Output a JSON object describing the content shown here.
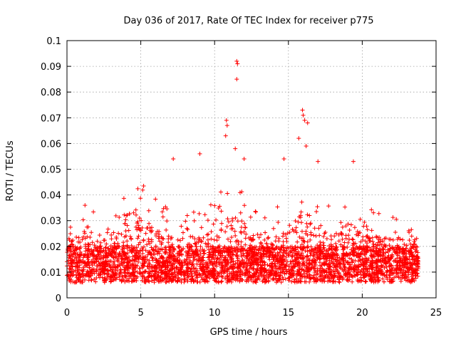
{
  "chart_data": {
    "type": "scatter",
    "title": "Day 036 of 2017, Rate Of TEC Index for receiver p775",
    "xlabel": "GPS time / hours",
    "ylabel": "ROTI / TECUs",
    "xlim": [
      0,
      25
    ],
    "ylim": [
      0,
      0.1
    ],
    "grid": true,
    "xticks": [
      0,
      5,
      10,
      15,
      20,
      25
    ],
    "xtick_labels": [
      "0",
      "5",
      "10",
      "15",
      "20",
      "25"
    ],
    "yticks": [
      0,
      0.01,
      0.02,
      0.03,
      0.04,
      0.05,
      0.06,
      0.07,
      0.08,
      0.09,
      0.1
    ],
    "ytick_labels": [
      "0",
      "0.01",
      "0.02",
      "0.03",
      "0.04",
      "0.05",
      "0.06",
      "0.07",
      "0.08",
      "0.09",
      "0.1"
    ],
    "marker": "plus",
    "color": "#ff0000",
    "x_range_of_data": [
      0,
      23.8
    ],
    "outliers": [
      {
        "x": 11.5,
        "y": 0.092
      },
      {
        "x": 11.55,
        "y": 0.091
      },
      {
        "x": 11.5,
        "y": 0.085
      },
      {
        "x": 10.8,
        "y": 0.069
      },
      {
        "x": 10.85,
        "y": 0.067
      },
      {
        "x": 10.75,
        "y": 0.063
      },
      {
        "x": 15.95,
        "y": 0.073
      },
      {
        "x": 16.0,
        "y": 0.071
      },
      {
        "x": 16.1,
        "y": 0.069
      },
      {
        "x": 15.7,
        "y": 0.062
      },
      {
        "x": 16.3,
        "y": 0.068
      },
      {
        "x": 16.2,
        "y": 0.059
      },
      {
        "x": 11.4,
        "y": 0.058
      },
      {
        "x": 9.0,
        "y": 0.056
      },
      {
        "x": 14.7,
        "y": 0.054
      },
      {
        "x": 7.2,
        "y": 0.054
      },
      {
        "x": 17.0,
        "y": 0.053
      },
      {
        "x": 19.4,
        "y": 0.053
      },
      {
        "x": 12.0,
        "y": 0.054
      }
    ]
  }
}
